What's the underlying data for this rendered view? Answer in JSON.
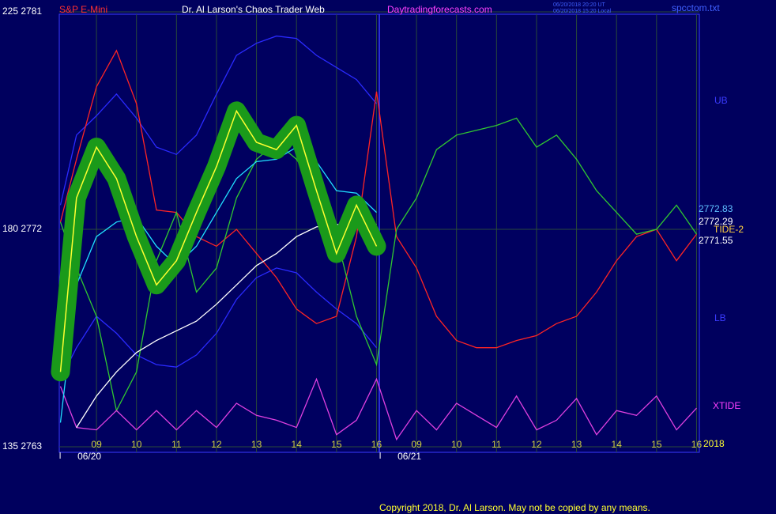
{
  "header": {
    "left": "S&P E-Mini",
    "center": "Dr. Al Larson's Chaos Trader Web",
    "site": "Daytradingforecasts.com",
    "stamp": [
      "06/20/2018 20:20 UT",
      "06/20/2018 15:20 Local"
    ],
    "file": "spcctom.txt"
  },
  "footer": "Copyright 2018, Dr. Al Larson. May not be copied by any means.",
  "chart_data": {
    "type": "line",
    "xlim": [
      -0.93,
      15.07
    ],
    "ylim": [
      2763,
      2781
    ],
    "yticks": [
      {
        "value": 2763,
        "label": "135 2763"
      },
      {
        "value": 2772,
        "label": "180 2772"
      },
      {
        "value": 2781,
        "label": "225 2781"
      }
    ],
    "xticks": [
      {
        "value": 0,
        "label": "09"
      },
      {
        "value": 1,
        "label": "10"
      },
      {
        "value": 2,
        "label": "11"
      },
      {
        "value": 3,
        "label": "12"
      },
      {
        "value": 4,
        "label": "13"
      },
      {
        "value": 5,
        "label": "14"
      },
      {
        "value": 6,
        "label": "15"
      },
      {
        "value": 7,
        "label": "16"
      },
      {
        "value": 8,
        "label": "09"
      },
      {
        "value": 9,
        "label": "10"
      },
      {
        "value": 10,
        "label": "11"
      },
      {
        "value": 11,
        "label": "12"
      },
      {
        "value": 12,
        "label": "13"
      },
      {
        "value": 13,
        "label": "14"
      },
      {
        "value": 14,
        "label": "15"
      },
      {
        "value": 15,
        "label": "16"
      }
    ],
    "dates": [
      {
        "value": 0,
        "label": "06/20"
      },
      {
        "value": 8,
        "label": "06/21"
      }
    ],
    "divider": 7.07,
    "year": "2018",
    "grid": true,
    "x": [
      -0.9,
      -0.5,
      0,
      0.5,
      1,
      1.5,
      2,
      2.5,
      3,
      3.5,
      4,
      4.5,
      5,
      5.5,
      6,
      6.5,
      7,
      7.5,
      8,
      8.5,
      9,
      9.5,
      10,
      10.5,
      11,
      11.5,
      12,
      12.5,
      13,
      13.5,
      14,
      14.5,
      15
    ],
    "series": [
      {
        "name": "UB",
        "color": "#2a2aff",
        "values": [
          2773.0,
          2775.9,
          2776.7,
          2777.6,
          2776.6,
          2775.4,
          2775.1,
          2775.9,
          2777.6,
          2779.2,
          2779.7,
          2780.0,
          2779.9,
          2779.2,
          2778.7,
          2778.2,
          2777.2,
          null,
          null,
          null,
          null,
          null,
          null,
          null,
          null,
          null,
          null,
          null,
          null,
          null,
          null,
          null,
          null
        ]
      },
      {
        "name": "LB",
        "color": "#2a2aff",
        "values": [
          2765.8,
          2767.1,
          2768.4,
          2767.7,
          2766.8,
          2766.4,
          2766.3,
          2766.8,
          2767.7,
          2769.1,
          2770.0,
          2770.4,
          2770.2,
          2769.4,
          2768.7,
          2768.1,
          2767.1,
          null,
          null,
          null,
          null,
          null,
          null,
          null,
          null,
          null,
          null,
          null,
          null,
          null,
          null,
          null,
          null
        ]
      },
      {
        "color": "#ff2424",
        "values": [
          2772.3,
          2774.9,
          2777.9,
          2779.4,
          2777.2,
          2772.8,
          2772.7,
          2771.7,
          2771.3,
          2772.0,
          2771.0,
          2770.0,
          2768.7,
          2768.1,
          2768.4,
          2771.7,
          2777.7,
          2771.7,
          2770.4,
          2768.4,
          2767.4,
          2767.1,
          2767.1,
          2767.4,
          2767.6,
          2768.1,
          2768.4,
          2769.4,
          2770.7,
          2771.7,
          2772.0,
          2770.7,
          2771.8
        ]
      },
      {
        "color": "#30c830",
        "values": [
          2772.3,
          2770.4,
          2768.4,
          2764.5,
          2766.1,
          2770.7,
          2772.7,
          2769.4,
          2770.4,
          2773.3,
          2774.9,
          2775.6,
          2774.9,
          2773.6,
          2771.7,
          2768.4,
          2766.4,
          2772.0,
          2773.3,
          2775.3,
          2775.9,
          2776.1,
          2776.3,
          2776.6,
          2775.4,
          2775.9,
          2774.9,
          2773.6,
          2772.7,
          2771.8,
          2772.0,
          2773.0,
          2771.8
        ]
      },
      {
        "name": "XTIDE",
        "color": "#e040e0",
        "values": [
          2765.5,
          2763.8,
          2763.7,
          2764.5,
          2763.7,
          2764.5,
          2763.7,
          2764.5,
          2763.8,
          2764.8,
          2764.3,
          2764.1,
          2763.8,
          2765.8,
          2763.5,
          2764.1,
          2765.8,
          2763.3,
          2764.5,
          2763.7,
          2764.8,
          2764.3,
          2763.8,
          2765.1,
          2763.7,
          2764.1,
          2765.0,
          2763.5,
          2764.5,
          2764.3,
          2765.1,
          2763.7,
          2764.6
        ]
      },
      {
        "color": "#ffffff",
        "values": [
          null,
          2763.8,
          2765.1,
          2766.1,
          2766.9,
          2767.4,
          2767.8,
          2768.2,
          2768.9,
          2769.7,
          2770.5,
          2771.0,
          2771.7,
          2772.1,
          2772.2,
          2772.2,
          2772.2,
          null,
          null,
          null,
          null,
          null,
          null,
          null,
          null,
          null,
          null,
          null,
          null,
          null,
          null,
          null,
          null
        ]
      },
      {
        "color": "#20e0ff",
        "values": [
          2764.0,
          2769.7,
          2771.7,
          2772.3,
          2772.5,
          2771.3,
          2770.5,
          2771.3,
          2772.7,
          2774.1,
          2774.8,
          2774.9,
          2775.4,
          2774.8,
          2773.6,
          2773.5,
          2772.7,
          null,
          null,
          null,
          null,
          null,
          null,
          null,
          null,
          null,
          null,
          null,
          null,
          null,
          null,
          null,
          null
        ]
      },
      {
        "color": "#ffff30",
        "band_color": "#1a9a1a",
        "values": [
          2766.1,
          2773.3,
          2775.4,
          2774.1,
          2771.7,
          2769.7,
          2770.7,
          2772.7,
          2774.6,
          2776.9,
          2775.6,
          2775.3,
          2776.3,
          2773.6,
          2771.0,
          2773.0,
          2771.3,
          null,
          null,
          null,
          null,
          null,
          null,
          null,
          null,
          null,
          null,
          null,
          null,
          null,
          null,
          null,
          null
        ]
      }
    ],
    "annotations": [
      "2772.83",
      "2772.29",
      "TIDE-2",
      "2771.55"
    ]
  }
}
